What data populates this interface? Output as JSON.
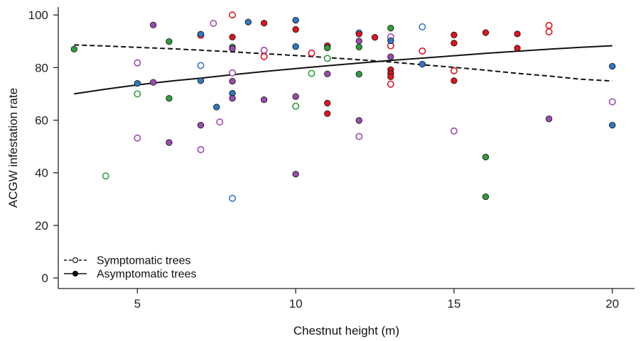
{
  "chart_data": {
    "type": "scatter",
    "title": "",
    "xlabel": "Chestnut height (m)",
    "ylabel": "ACGW infestation rate",
    "xlim": [
      2.5,
      20.7
    ],
    "ylim": [
      -4,
      103
    ],
    "x_ticks": [
      5,
      10,
      15,
      20
    ],
    "y_ticks": [
      0,
      20,
      40,
      60,
      80,
      100
    ],
    "x_tick_labels": [
      "5",
      "10",
      "15",
      "20"
    ],
    "y_tick_labels": [
      "0",
      "20",
      "40",
      "60",
      "80",
      "100"
    ],
    "grid": false,
    "legend_position": "bottom-left",
    "point_colors": {
      "blue": "#2f78c6",
      "red": "#e0141e",
      "green": "#2f9e3c",
      "purple": "#9b4bb0"
    },
    "series": [
      {
        "name": "Symptomatic trees",
        "marker": "open-circle",
        "line_style": "dashed",
        "trend_x": [
          3,
          4,
          5,
          6,
          7,
          8,
          9,
          10,
          11,
          12,
          13,
          14,
          15,
          16,
          17,
          18,
          19,
          20
        ],
        "trend_y": [
          88.6,
          88.2,
          87.7,
          87.2,
          86.6,
          86.0,
          85.3,
          84.6,
          83.8,
          83.0,
          82.1,
          81.1,
          80.1,
          79.0,
          77.8,
          76.8,
          75.6,
          74.9
        ],
        "points": [
          {
            "x": 4,
            "y": 38.8,
            "color": "green"
          },
          {
            "x": 5,
            "y": 81.8,
            "color": "purple"
          },
          {
            "x": 5,
            "y": 70.0,
            "color": "green"
          },
          {
            "x": 5,
            "y": 53.2,
            "color": "purple"
          },
          {
            "x": 7,
            "y": 92.3,
            "color": "red"
          },
          {
            "x": 7,
            "y": 80.8,
            "color": "blue"
          },
          {
            "x": 7,
            "y": 48.8,
            "color": "purple"
          },
          {
            "x": 7.4,
            "y": 96.8,
            "color": "purple"
          },
          {
            "x": 7.6,
            "y": 59.3,
            "color": "purple"
          },
          {
            "x": 8,
            "y": 100.0,
            "color": "red"
          },
          {
            "x": 8,
            "y": 78.0,
            "color": "purple"
          },
          {
            "x": 8,
            "y": 30.3,
            "color": "blue"
          },
          {
            "x": 9,
            "y": 86.6,
            "color": "purple"
          },
          {
            "x": 9,
            "y": 84.2,
            "color": "red"
          },
          {
            "x": 10,
            "y": 65.3,
            "color": "green"
          },
          {
            "x": 10.5,
            "y": 85.5,
            "color": "red"
          },
          {
            "x": 10.5,
            "y": 77.8,
            "color": "green"
          },
          {
            "x": 11,
            "y": 83.5,
            "color": "green"
          },
          {
            "x": 12,
            "y": 93.2,
            "color": "blue"
          },
          {
            "x": 12,
            "y": 53.8,
            "color": "purple"
          },
          {
            "x": 13,
            "y": 91.7,
            "color": "purple"
          },
          {
            "x": 13,
            "y": 88.3,
            "color": "red"
          },
          {
            "x": 13,
            "y": 73.7,
            "color": "red"
          },
          {
            "x": 14,
            "y": 95.5,
            "color": "blue"
          },
          {
            "x": 14,
            "y": 86.3,
            "color": "red"
          },
          {
            "x": 15,
            "y": 78.8,
            "color": "red"
          },
          {
            "x": 15,
            "y": 55.9,
            "color": "purple"
          },
          {
            "x": 18,
            "y": 96.0,
            "color": "red"
          },
          {
            "x": 18,
            "y": 93.6,
            "color": "red"
          },
          {
            "x": 20,
            "y": 67.0,
            "color": "purple"
          }
        ]
      },
      {
        "name": "Asymptomatic trees",
        "marker": "filled-circle",
        "line_style": "solid",
        "trend_x": [
          3,
          4,
          5,
          6,
          7,
          8,
          9,
          10,
          11,
          12,
          13,
          14,
          15,
          16,
          17,
          18,
          19,
          20
        ],
        "trend_y": [
          70.0,
          71.8,
          73.4,
          74.8,
          76.0,
          77.3,
          78.5,
          79.6,
          80.7,
          81.7,
          82.7,
          83.6,
          84.5,
          85.4,
          86.2,
          87.0,
          87.7,
          88.3
        ],
        "points": [
          {
            "x": 3,
            "y": 87.0,
            "color": "green"
          },
          {
            "x": 5,
            "y": 74.0,
            "color": "blue"
          },
          {
            "x": 5.5,
            "y": 96.2,
            "color": "purple"
          },
          {
            "x": 5.5,
            "y": 74.4,
            "color": "purple"
          },
          {
            "x": 6,
            "y": 89.9,
            "color": "green"
          },
          {
            "x": 6,
            "y": 68.3,
            "color": "green"
          },
          {
            "x": 6,
            "y": 51.5,
            "color": "purple"
          },
          {
            "x": 7,
            "y": 92.7,
            "color": "blue"
          },
          {
            "x": 7,
            "y": 75.0,
            "color": "blue"
          },
          {
            "x": 7,
            "y": 58.1,
            "color": "purple"
          },
          {
            "x": 7.5,
            "y": 65.0,
            "color": "blue"
          },
          {
            "x": 8,
            "y": 91.6,
            "color": "red"
          },
          {
            "x": 8,
            "y": 87.8,
            "color": "green"
          },
          {
            "x": 8,
            "y": 87.2,
            "color": "purple"
          },
          {
            "x": 8,
            "y": 74.8,
            "color": "purple"
          },
          {
            "x": 8,
            "y": 70.2,
            "color": "blue"
          },
          {
            "x": 8,
            "y": 68.3,
            "color": "purple"
          },
          {
            "x": 8.5,
            "y": 97.3,
            "color": "blue"
          },
          {
            "x": 9,
            "y": 96.9,
            "color": "red"
          },
          {
            "x": 9,
            "y": 67.8,
            "color": "purple"
          },
          {
            "x": 10,
            "y": 98.0,
            "color": "blue"
          },
          {
            "x": 10,
            "y": 94.5,
            "color": "red"
          },
          {
            "x": 10,
            "y": 88.0,
            "color": "blue"
          },
          {
            "x": 10,
            "y": 69.0,
            "color": "purple"
          },
          {
            "x": 10,
            "y": 39.5,
            "color": "purple"
          },
          {
            "x": 11,
            "y": 88.3,
            "color": "red"
          },
          {
            "x": 11,
            "y": 87.5,
            "color": "green"
          },
          {
            "x": 11,
            "y": 77.6,
            "color": "purple"
          },
          {
            "x": 11,
            "y": 66.5,
            "color": "red"
          },
          {
            "x": 11,
            "y": 62.5,
            "color": "red"
          },
          {
            "x": 12,
            "y": 92.8,
            "color": "red"
          },
          {
            "x": 12,
            "y": 90.1,
            "color": "purple"
          },
          {
            "x": 12,
            "y": 87.8,
            "color": "green"
          },
          {
            "x": 12,
            "y": 77.5,
            "color": "green"
          },
          {
            "x": 12,
            "y": 59.9,
            "color": "purple"
          },
          {
            "x": 12.5,
            "y": 91.5,
            "color": "red"
          },
          {
            "x": 13,
            "y": 95.0,
            "color": "green"
          },
          {
            "x": 13,
            "y": 90.2,
            "color": "blue"
          },
          {
            "x": 13,
            "y": 84.1,
            "color": "purple"
          },
          {
            "x": 13,
            "y": 79.2,
            "color": "red"
          },
          {
            "x": 13,
            "y": 77.8,
            "color": "red"
          },
          {
            "x": 13,
            "y": 76.5,
            "color": "red"
          },
          {
            "x": 14,
            "y": 81.3,
            "color": "blue"
          },
          {
            "x": 15,
            "y": 92.4,
            "color": "red"
          },
          {
            "x": 15,
            "y": 89.3,
            "color": "red"
          },
          {
            "x": 15,
            "y": 75.0,
            "color": "red"
          },
          {
            "x": 16,
            "y": 93.3,
            "color": "red"
          },
          {
            "x": 16,
            "y": 46.0,
            "color": "green"
          },
          {
            "x": 16,
            "y": 30.9,
            "color": "green"
          },
          {
            "x": 17,
            "y": 92.8,
            "color": "red"
          },
          {
            "x": 17,
            "y": 87.4,
            "color": "red"
          },
          {
            "x": 18,
            "y": 60.5,
            "color": "purple"
          },
          {
            "x": 20,
            "y": 80.5,
            "color": "blue"
          },
          {
            "x": 20,
            "y": 58.1,
            "color": "blue"
          }
        ]
      }
    ]
  }
}
